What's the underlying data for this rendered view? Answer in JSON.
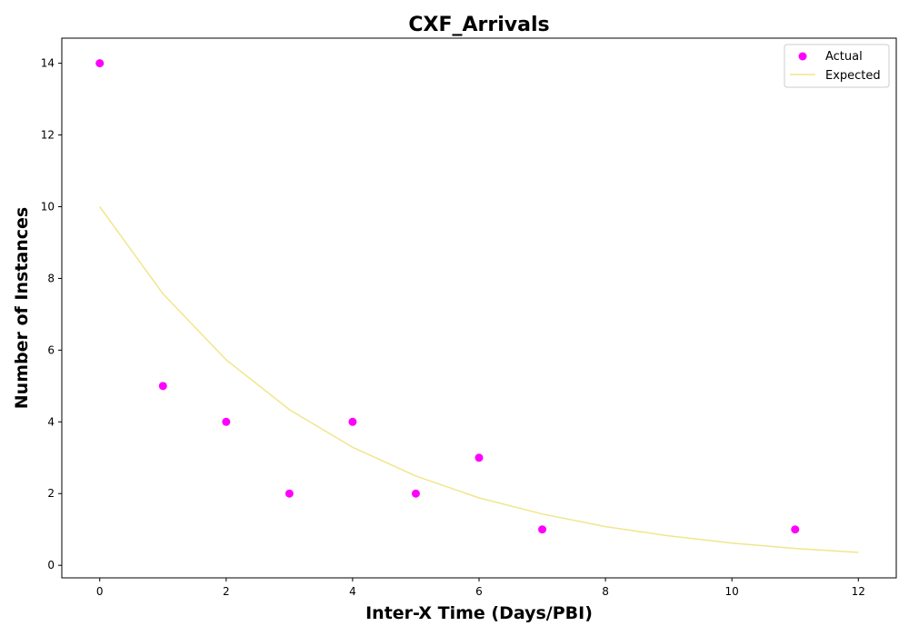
{
  "chart_data": {
    "type": "scatter",
    "title": "CXF_Arrivals",
    "xlabel": "Inter-X Time (Days/PBI)",
    "ylabel": "Number of Instances",
    "xlim": [
      -0.6,
      12.6
    ],
    "ylim": [
      -0.35,
      14.7
    ],
    "xticks": [
      0,
      2,
      4,
      6,
      8,
      10,
      12
    ],
    "yticks": [
      0,
      2,
      4,
      6,
      8,
      10,
      12,
      14
    ],
    "grid": false,
    "legend_position": "top-right",
    "series": [
      {
        "name": "Actual",
        "kind": "scatter",
        "color": "#ff00ff",
        "x": [
          0,
          1,
          2,
          3,
          4,
          5,
          6,
          7,
          11
        ],
        "y": [
          14,
          5,
          4,
          2,
          4,
          2,
          3,
          1,
          1
        ]
      },
      {
        "name": "Expected",
        "kind": "line",
        "color": "#f0e68c",
        "x": [
          0,
          1,
          2,
          3,
          4,
          5,
          6,
          7,
          8,
          9,
          10,
          11,
          12
        ],
        "y": [
          10.0,
          7.57,
          5.73,
          4.34,
          3.29,
          2.49,
          1.88,
          1.43,
          1.08,
          0.82,
          0.62,
          0.47,
          0.36
        ]
      }
    ]
  }
}
